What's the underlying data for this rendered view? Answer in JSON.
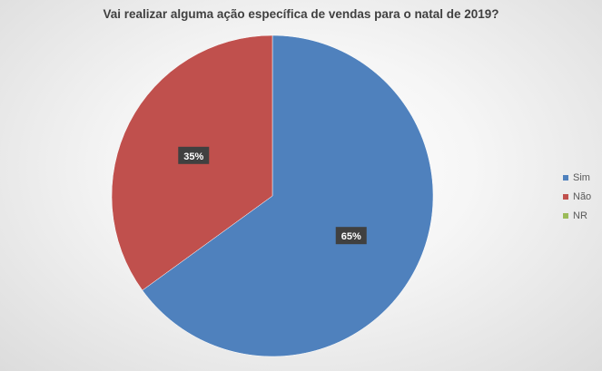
{
  "chart_data": {
    "type": "pie",
    "title": "Vai realizar alguma ação específica de vendas para o natal de 2019?",
    "categories": [
      "Sim",
      "Não",
      "NR"
    ],
    "values": [
      65,
      35,
      0
    ],
    "data_labels": [
      "65%",
      "35%",
      ""
    ],
    "colors": [
      "#4f81bd",
      "#c0504d",
      "#9bbb59"
    ],
    "legend_position": "right"
  }
}
